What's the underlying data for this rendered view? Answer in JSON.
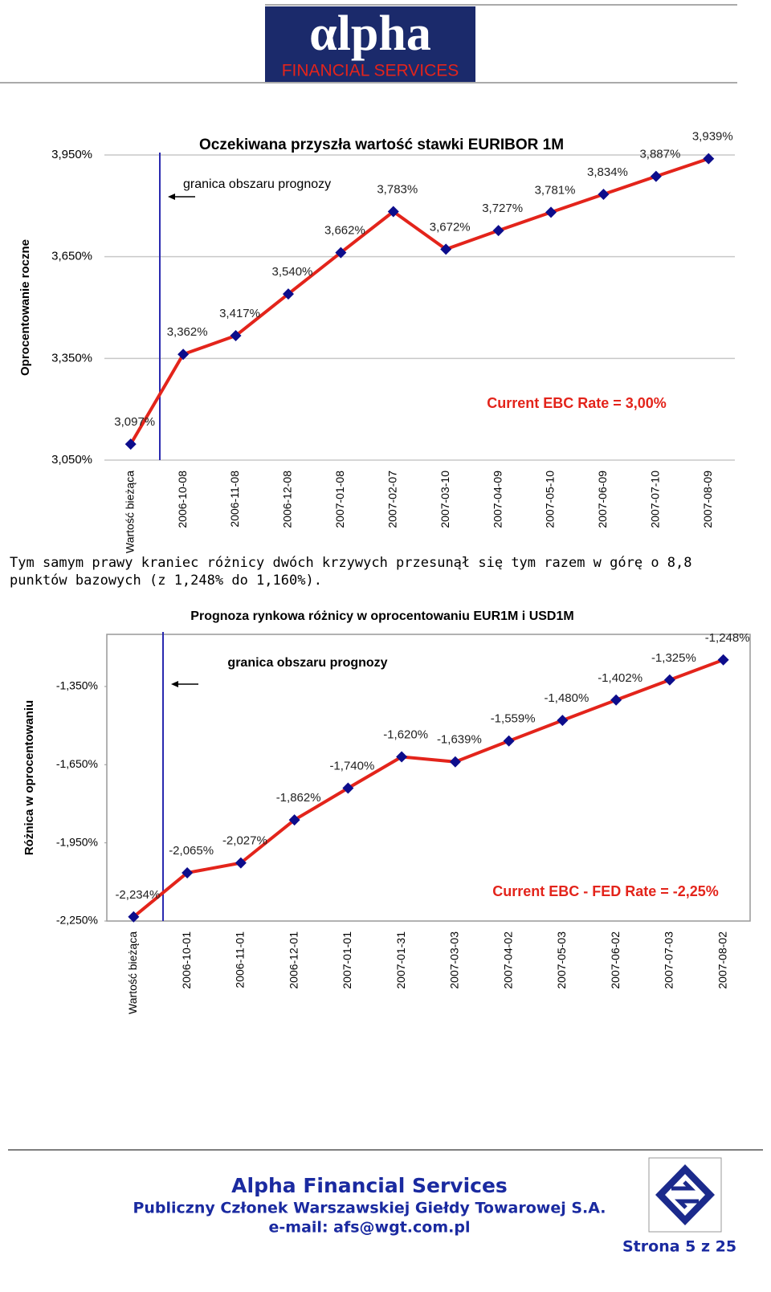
{
  "header": {
    "logo_text": "αlpha",
    "logo_subtitle": "FINANCIAL SERVICES"
  },
  "chart_data": [
    {
      "type": "line",
      "title": "Oczekiwana przyszła wartość stawki EURIBOR 1M",
      "y_label": "Oprocentowanie roczne",
      "categories": [
        "Wartość bieżąca",
        "2006-10-08",
        "2006-11-08",
        "2006-12-08",
        "2007-01-08",
        "2007-02-07",
        "2007-03-10",
        "2007-04-09",
        "2007-05-10",
        "2007-06-09",
        "2007-07-10",
        "2007-08-09"
      ],
      "values": [
        3.097,
        3.362,
        3.417,
        3.54,
        3.662,
        3.783,
        3.672,
        3.727,
        3.781,
        3.834,
        3.887,
        3.939
      ],
      "value_labels": [
        "3,097%",
        "3,362%",
        "3,417%",
        "3,540%",
        "3,662%",
        "3,783%",
        "3,672%",
        "3,727%",
        "3,781%",
        "3,834%",
        "3,887%",
        "3,939%"
      ],
      "color": "#e3241b",
      "marker_color": "#0d0d8c",
      "ylim": [
        3.05,
        3.95
      ],
      "yticks": [
        {
          "value": 3.05,
          "label": "3,050%"
        },
        {
          "value": 3.35,
          "label": "3,350%"
        },
        {
          "value": 3.65,
          "label": "3,650%"
        },
        {
          "value": 3.95,
          "label": "3,950%"
        }
      ],
      "grid": true,
      "annotations": [
        "granica obszaru prognozy",
        "Current EBC Rate = 3,00%"
      ]
    },
    {
      "type": "line",
      "title": "Prognoza rynkowa różnicy w oprocentowaniu EUR1M i USD1M",
      "y_label": "Różnica w oprocentowaniu",
      "categories": [
        "Wartość bieżąca",
        "2006-10-01",
        "2006-11-01",
        "2006-12-01",
        "2007-01-01",
        "2007-01-31",
        "2007-03-03",
        "2007-04-02",
        "2007-05-03",
        "2007-06-02",
        "2007-07-03",
        "2007-08-02"
      ],
      "values": [
        -2.234,
        -2.065,
        -2.027,
        -1.862,
        -1.74,
        -1.62,
        -1.639,
        -1.559,
        -1.48,
        -1.402,
        -1.325,
        -1.248
      ],
      "value_labels": [
        "-2,234%",
        "-2,065%",
        "-2,027%",
        "-1,862%",
        "-1,740%",
        "-1,620%",
        "-1,639%",
        "-1,559%",
        "-1,480%",
        "-1,402%",
        "-1,325%",
        "-1,248%"
      ],
      "color": "#e3241b",
      "marker_color": "#0d0d8c",
      "ylim": [
        -2.25,
        -1.15
      ],
      "yticks": [
        {
          "value": -2.25,
          "label": "-2,250%"
        },
        {
          "value": -1.95,
          "label": "-1,950%"
        },
        {
          "value": -1.65,
          "label": "-1,650%"
        },
        {
          "value": -1.35,
          "label": "-1,350%"
        }
      ],
      "grid": false,
      "annotations": [
        "granica obszaru prognozy",
        "Current EBC - FED Rate = -2,25%"
      ]
    }
  ],
  "paragraph": "Tym samym prawy kraniec różnicy dwóch krzywych przesunął się tym razem w górę o 8,8 punktów bazowych (z 1,248% do 1,160%).",
  "footer": {
    "company": "Alpha Financial Services",
    "member": "Publiczny Członek Warszawskiej Giełdy Towarowej S.A.",
    "email": "e-mail: afs@wgt.com.pl",
    "page": "Strona 5 z 25"
  }
}
